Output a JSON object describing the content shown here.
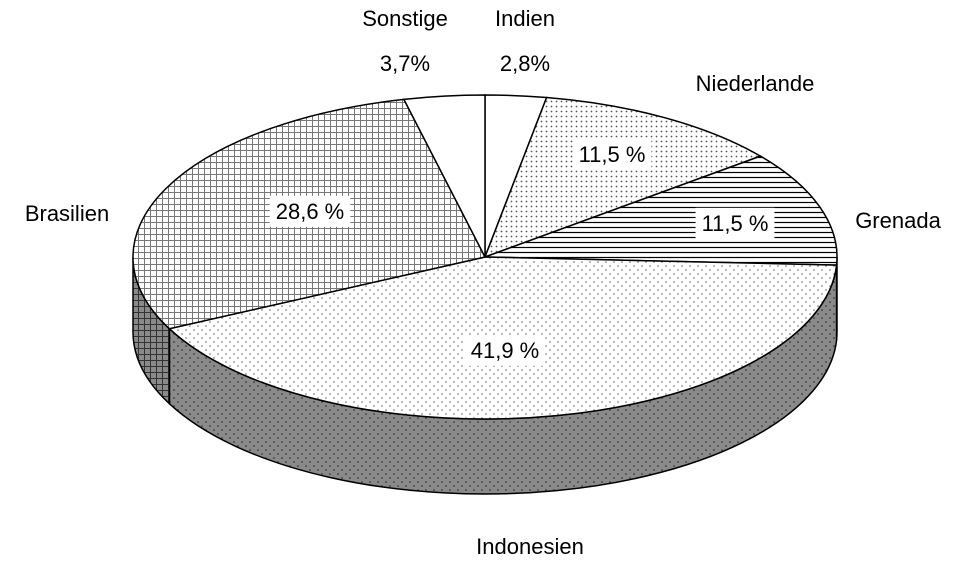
{
  "chart_data": {
    "type": "pie",
    "categories": [
      "Indien",
      "Niederlande",
      "Grenada",
      "Indonesien",
      "Brasilien",
      "Sonstige"
    ],
    "values": [
      2.8,
      11.5,
      11.5,
      41.9,
      28.6,
      3.7
    ],
    "value_labels": [
      "2,8%",
      "11,5 %",
      "11,5 %",
      "41,9 %",
      "28,6 %",
      "3,7%"
    ]
  }
}
